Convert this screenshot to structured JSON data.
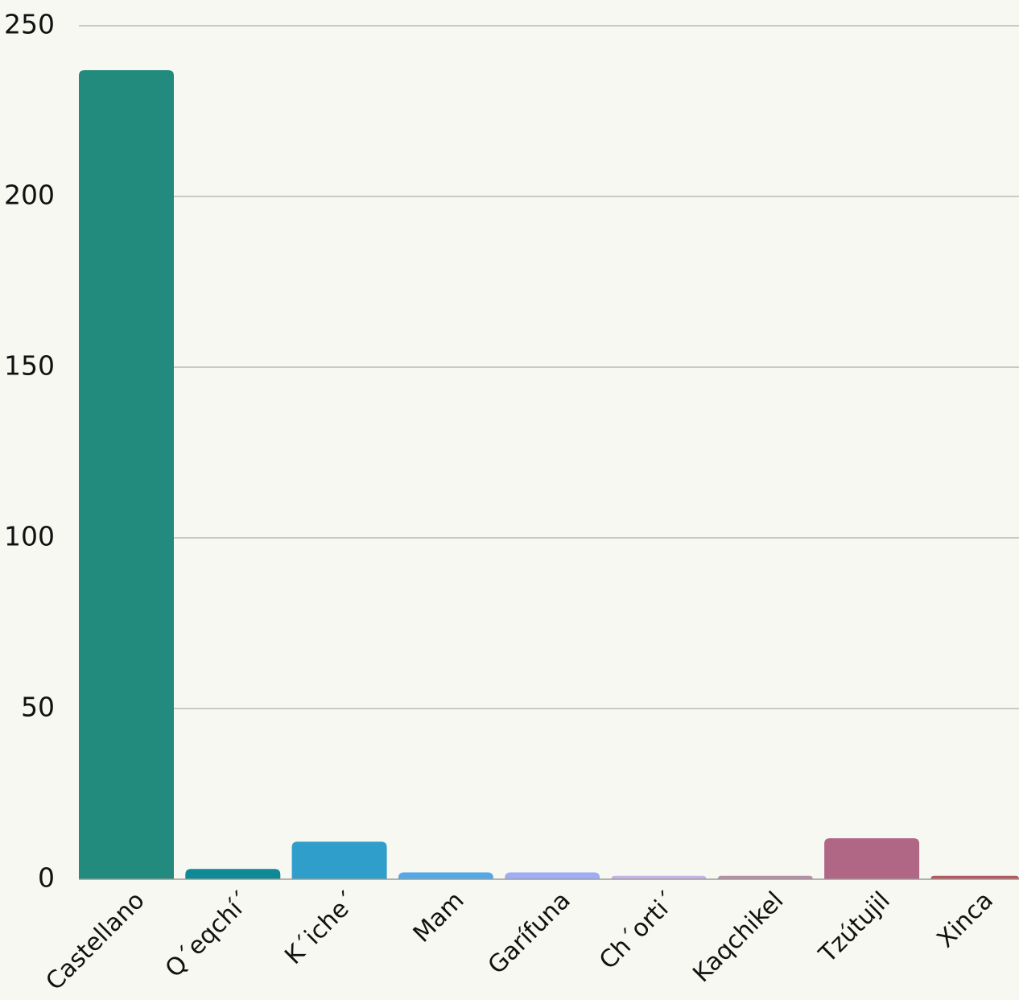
{
  "chart_data": {
    "type": "bar",
    "title": "",
    "xlabel": "",
    "ylabel": "",
    "ylim": [
      0,
      250
    ],
    "yticks": [
      0,
      50,
      100,
      150,
      200,
      250
    ],
    "grid": true,
    "legend": "none",
    "categories": [
      "Castellano",
      "Q´eqchí´",
      "K´iche´",
      "Mam",
      "Garífuna",
      "Ch´orti´",
      "Kaqchikel",
      "Tzútujil",
      "Xinca"
    ],
    "values": [
      237,
      3,
      11,
      2,
      2,
      1,
      1,
      12,
      1
    ],
    "colors": [
      "#238b7e",
      "#0f8996",
      "#309eca",
      "#55a8e8",
      "#9fadf4",
      "#c4b2e8",
      "#b78ea8",
      "#b06785",
      "#b45861"
    ]
  }
}
